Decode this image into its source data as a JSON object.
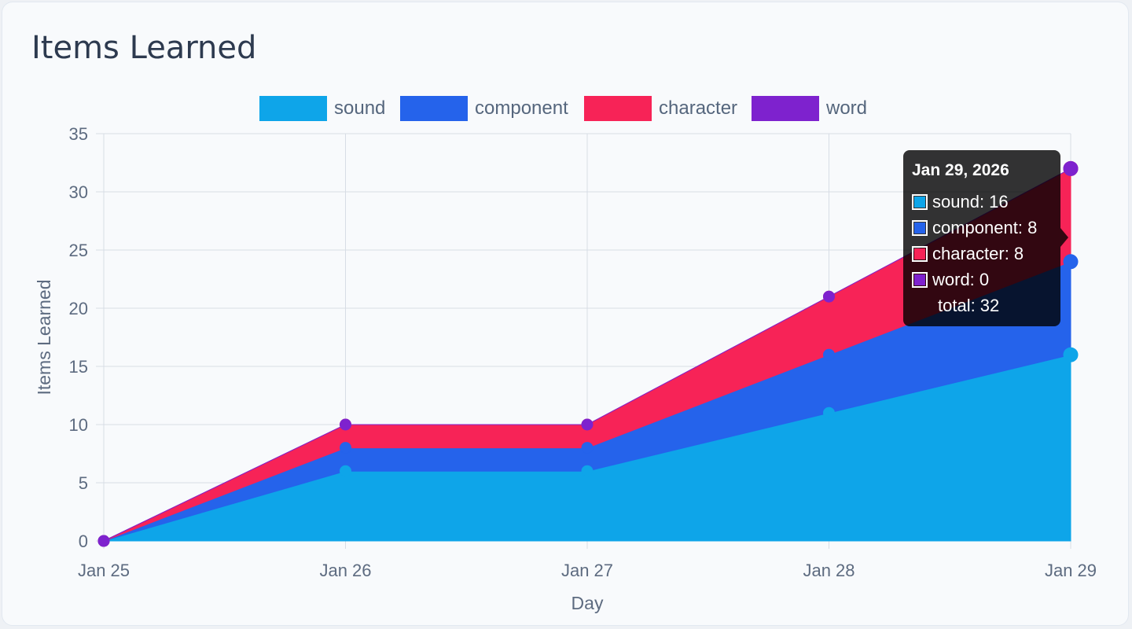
{
  "card": {
    "title": "Items Learned"
  },
  "chart_data": {
    "type": "area",
    "stacked": true,
    "title": "Items Learned",
    "xlabel": "Day",
    "ylabel": "Items Learned",
    "x": [
      "Jan 25",
      "Jan 26",
      "Jan 27",
      "Jan 28",
      "Jan 29"
    ],
    "ylim": [
      0,
      35
    ],
    "yticks": [
      0,
      5,
      10,
      15,
      20,
      25,
      30,
      35
    ],
    "grid": true,
    "legend_position": "top-center",
    "series": [
      {
        "name": "sound",
        "color": "#0ea5e9",
        "values": [
          0,
          6,
          6,
          11,
          16
        ]
      },
      {
        "name": "component",
        "color": "#2563eb",
        "values": [
          0,
          2,
          2,
          5,
          8
        ]
      },
      {
        "name": "character",
        "color": "#f72357",
        "values": [
          0,
          2,
          2,
          5,
          8
        ]
      },
      {
        "name": "word",
        "color": "#7e22ce",
        "values": [
          0,
          0,
          0,
          0,
          0
        ]
      }
    ]
  },
  "tooltip": {
    "title": "Jan 29, 2026",
    "rows": [
      "sound: 16",
      "component: 8",
      "character: 8",
      "word: 0"
    ],
    "footer": "total: 32"
  }
}
